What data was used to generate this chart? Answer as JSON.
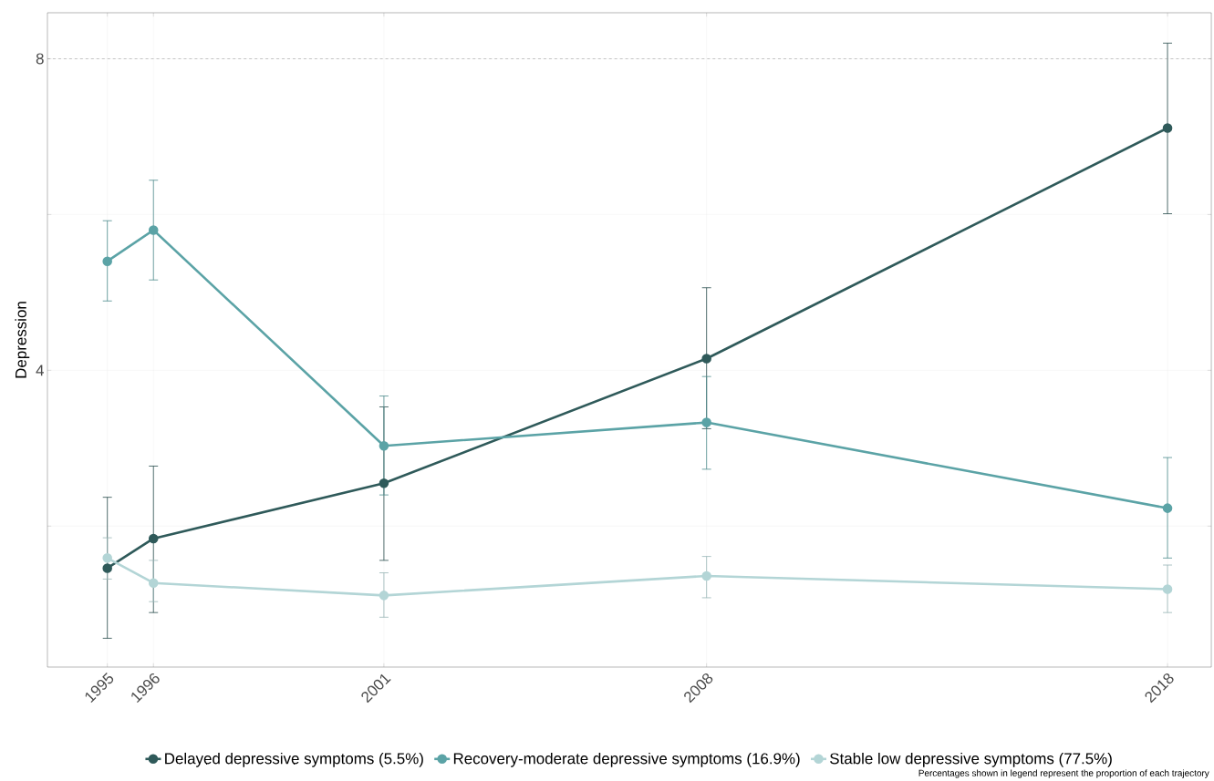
{
  "chart_data": {
    "type": "line",
    "ylabel": "Depression",
    "x": [
      1995,
      1996,
      2001,
      2008,
      2018
    ],
    "xlim": [
      1993.7,
      2018.95
    ],
    "xticks": [
      1995,
      1996,
      2001,
      2008,
      2018
    ],
    "ylim": [
      0.19,
      8.59
    ],
    "yticks": [
      {
        "value": 2,
        "label": null
      },
      4,
      {
        "value": 6,
        "label": null
      },
      8
    ],
    "series": [
      {
        "name": "Delayed depressive symptoms (5.5%)",
        "color": "#2f5a5a",
        "values": [
          1.46,
          1.84,
          2.55,
          4.15,
          7.11
        ],
        "errors": [
          [
            0.56,
            2.37
          ],
          [
            0.89,
            2.77
          ],
          [
            1.56,
            3.53
          ],
          [
            3.25,
            5.06
          ],
          [
            6.01,
            8.2
          ]
        ]
      },
      {
        "name": "Recovery-moderate depressive symptoms (16.9%)",
        "color": "#5ba3a6",
        "values": [
          5.4,
          5.8,
          3.03,
          3.33,
          2.23
        ],
        "errors": [
          [
            4.89,
            5.92
          ],
          [
            5.16,
            6.44
          ],
          [
            2.4,
            3.67
          ],
          [
            2.73,
            3.92
          ],
          [
            1.59,
            2.88
          ]
        ]
      },
      {
        "name": "Stable low depressive symptoms (77.5%)",
        "color": "#b3d5d6",
        "values": [
          1.59,
          1.27,
          1.11,
          1.36,
          1.19
        ],
        "errors": [
          [
            1.32,
            1.85
          ],
          [
            1.03,
            1.56
          ],
          [
            0.83,
            1.4
          ],
          [
            1.08,
            1.61
          ],
          [
            0.89,
            1.5
          ]
        ]
      }
    ],
    "ref_lines": [
      {
        "axis": "y",
        "value": 8,
        "line_style": "dashed",
        "color": "#999999"
      }
    ],
    "annotations": [
      "Percentages shown in legend represent the proportion of each trajectory"
    ],
    "grid": true,
    "legend": "bottom",
    "marker": "circle",
    "line_style": "solid"
  }
}
